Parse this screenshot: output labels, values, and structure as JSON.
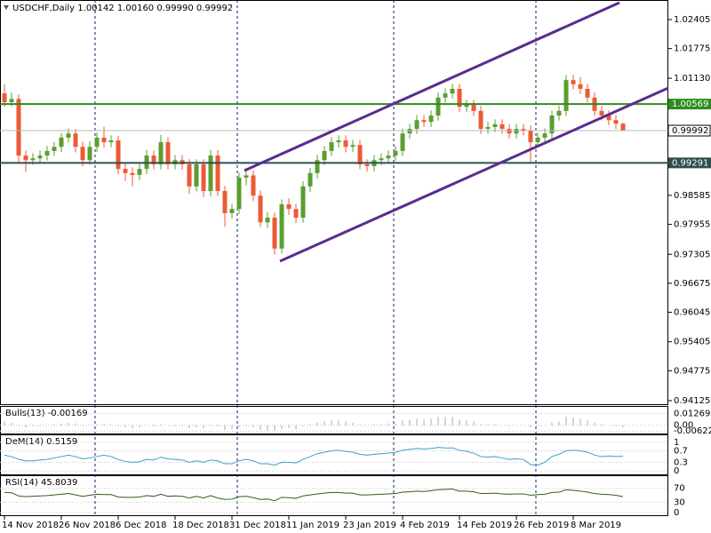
{
  "chart_data": {
    "type": "candlestick",
    "title": "USDCHF,Daily  1.00142 1.00160 0.99990 0.99992",
    "categories": [
      "14 Nov 2018",
      null,
      null,
      null,
      null,
      null,
      null,
      null,
      "26 Nov 2018",
      null,
      null,
      null,
      null,
      null,
      null,
      null,
      "6 Dec 2018",
      null,
      null,
      null,
      null,
      null,
      null,
      null,
      "18 Dec 2018",
      null,
      null,
      null,
      null,
      null,
      null,
      null,
      "31 Dec 2018",
      null,
      null,
      null,
      null,
      null,
      null,
      null,
      "11 Jan 2019",
      null,
      null,
      null,
      null,
      null,
      null,
      null,
      "23 Jan 2019",
      null,
      null,
      null,
      null,
      null,
      null,
      null,
      "4 Feb 2019",
      null,
      null,
      null,
      null,
      null,
      null,
      null,
      "14 Feb 2019",
      null,
      null,
      null,
      null,
      null,
      null,
      null,
      "26 Feb 2019",
      null,
      null,
      null,
      null,
      null,
      null,
      null,
      "8 Mar 2019",
      null,
      null,
      null,
      null,
      null,
      null,
      null
    ],
    "open": [
      1.008,
      1.0061,
      1.0068,
      0.9945,
      0.9935,
      0.9939,
      0.9945,
      0.9955,
      0.9964,
      0.9984,
      0.9993,
      0.9964,
      0.9935,
      0.9964,
      0.9984,
      0.9974,
      0.9978,
      0.9916,
      0.9907,
      0.9903,
      0.9916,
      0.9945,
      0.9926,
      0.9974,
      0.9926,
      0.9935,
      0.9926,
      0.9878,
      0.9926,
      0.9868,
      0.9945,
      0.9868,
      0.982,
      0.9829,
      0.9897,
      0.9902,
      0.9858,
      0.98,
      0.981,
      0.9743,
      0.9839,
      0.9829,
      0.981,
      0.9878,
      0.9907,
      0.9935,
      0.9955,
      0.9974,
      0.9978,
      0.9964,
      0.9968,
      0.9926,
      0.9922,
      0.9935,
      0.9939,
      0.9945,
      0.9955,
      0.9993,
      1.0003,
      1.0022,
      1.0018,
      1.0032,
      1.0071,
      1.008,
      1.009,
      1.0051,
      1.0055,
      1.0042,
      1.0003,
      1.0007,
      1.0013,
      1.0003,
      0.9993,
      1.0003,
      1.0,
      0.9974,
      0.9984,
      0.9993,
      1.0032,
      1.0042,
      1.0109,
      1.01,
      1.009,
      1.0071,
      1.0042,
      1.0032,
      1.0022,
      1.00142
    ],
    "high": [
      1.01,
      1.0082,
      1.0078,
      0.9956,
      0.995,
      0.9956,
      0.9966,
      0.9975,
      0.9994,
      1.0004,
      1.0003,
      0.9975,
      0.9976,
      0.9995,
      1.0008,
      0.9989,
      0.9988,
      0.9927,
      0.992,
      0.9927,
      0.9957,
      0.9956,
      0.999,
      0.9985,
      0.9946,
      0.9946,
      0.9937,
      0.9937,
      0.9937,
      0.9957,
      0.9957,
      0.9879,
      0.984,
      0.9908,
      0.9914,
      0.9913,
      0.9869,
      0.9822,
      0.9821,
      0.985,
      0.9852,
      0.984,
      0.9889,
      0.9918,
      0.9946,
      0.9966,
      0.9985,
      0.9989,
      0.9989,
      0.9979,
      0.9979,
      0.9937,
      0.9946,
      0.995,
      0.9956,
      0.9966,
      1.0004,
      1.0014,
      1.0033,
      1.0033,
      1.0043,
      1.0082,
      1.0091,
      1.0101,
      1.0101,
      1.0066,
      1.0066,
      1.0053,
      1.0018,
      1.0024,
      1.0024,
      1.0014,
      1.0014,
      1.0014,
      1.0011,
      0.9995,
      1.0004,
      1.0043,
      1.0053,
      1.012,
      1.012,
      1.0115,
      1.0101,
      1.0082,
      1.0053,
      1.0043,
      1.0033,
      1.0016
    ],
    "low": [
      1.0051,
      1.0052,
      0.993,
      0.991,
      0.9925,
      0.9928,
      0.9934,
      0.9944,
      0.9953,
      0.9973,
      0.9952,
      0.9922,
      0.9925,
      0.9953,
      0.9962,
      0.9963,
      0.9905,
      0.989,
      0.9878,
      0.9892,
      0.9905,
      0.9915,
      0.9915,
      0.9915,
      0.9915,
      0.9914,
      0.9862,
      0.9867,
      0.9855,
      0.9856,
      0.9857,
      0.979,
      0.9808,
      0.9818,
      0.988,
      0.9846,
      0.979,
      0.9788,
      0.973,
      0.9732,
      0.9816,
      0.9798,
      0.9799,
      0.9866,
      0.9895,
      0.9924,
      0.9944,
      0.9962,
      0.9952,
      0.9953,
      0.9915,
      0.991,
      0.9911,
      0.9924,
      0.9928,
      0.9934,
      0.9944,
      0.9982,
      0.9992,
      1.0007,
      1.0007,
      1.0021,
      1.006,
      1.0069,
      1.004,
      1.004,
      1.0031,
      0.9992,
      0.9992,
      0.9996,
      0.9992,
      0.9982,
      0.9982,
      0.9989,
      0.993,
      0.9963,
      0.9973,
      0.9982,
      1.0021,
      1.0031,
      1.0089,
      1.0079,
      1.006,
      1.0031,
      1.0021,
      1.0011,
      1.0003,
      0.9999
    ],
    "close": [
      1.0061,
      1.0068,
      0.9945,
      0.9935,
      0.9939,
      0.9945,
      0.9955,
      0.9964,
      0.9984,
      0.9993,
      0.9964,
      0.9935,
      0.9964,
      0.9984,
      0.9974,
      0.9978,
      0.9916,
      0.9907,
      0.9903,
      0.9916,
      0.9945,
      0.9926,
      0.9974,
      0.9926,
      0.9935,
      0.9926,
      0.9878,
      0.9926,
      0.9868,
      0.9945,
      0.9868,
      0.982,
      0.9829,
      0.9897,
      0.9902,
      0.9858,
      0.98,
      0.981,
      0.9743,
      0.9839,
      0.9829,
      0.981,
      0.9878,
      0.9907,
      0.9935,
      0.9955,
      0.9974,
      0.9978,
      0.9964,
      0.9968,
      0.9926,
      0.9922,
      0.9935,
      0.9939,
      0.9945,
      0.9955,
      0.9993,
      1.0003,
      1.0022,
      1.0018,
      1.0032,
      1.0071,
      1.008,
      1.009,
      1.0051,
      1.0055,
      1.0042,
      1.0003,
      1.0007,
      1.0013,
      1.0003,
      0.9993,
      1.0003,
      1.0,
      0.9974,
      0.9984,
      0.9993,
      1.0032,
      1.0042,
      1.0109,
      1.01,
      1.009,
      1.0071,
      1.0042,
      1.0032,
      1.0022,
      1.00142,
      0.99992
    ],
    "up_color": "#5a9e2f",
    "down_color": "#ec5a36",
    "ylim": [
      0.94048,
      1.0283
    ],
    "yticks": [
      1.02405,
      1.01775,
      {
        "value": 1.0113,
        "label": "1.01130"
      },
      0.98585,
      0.97955,
      0.97305,
      0.96675,
      0.96045,
      0.95405,
      0.94775,
      0.94125
    ],
    "levels": [
      {
        "value": 1.00569,
        "color": "#2e8b1e"
      },
      {
        "value": 0.99291,
        "color": "#2f4f4f"
      }
    ],
    "indicators": [
      {
        "type": "histogram",
        "label": "Bulls(13) -0.00169",
        "color": "#a8a8a8",
        "ylim": [
          -0.0089,
          0.0199
        ],
        "yticks": [
          0.01269,
          {
            "value": 0,
            "label": "0.00"
          },
          -0.00622
        ],
        "values": [
          0.004,
          0.003,
          -0.001,
          -0.002,
          -0.001,
          -0.001,
          0.0,
          0.001,
          0.002,
          0.003,
          0.002,
          -0.001,
          0.0,
          0.001,
          0.002,
          0.001,
          -0.001,
          -0.002,
          -0.003,
          -0.002,
          0.0,
          -0.001,
          0.001,
          0.0,
          -0.001,
          -0.001,
          -0.003,
          -0.002,
          -0.003,
          -0.001,
          -0.001,
          -0.005,
          -0.004,
          -0.002,
          -0.001,
          -0.002,
          -0.005,
          -0.006,
          -0.006,
          -0.004,
          -0.003,
          -0.004,
          -0.001,
          0.001,
          0.003,
          0.004,
          0.005,
          0.005,
          0.004,
          0.003,
          0.001,
          0.0,
          0.001,
          0.001,
          0.002,
          0.002,
          0.005,
          0.006,
          0.007,
          0.006,
          0.007,
          0.009,
          0.009,
          0.009,
          0.006,
          0.005,
          0.004,
          0.001,
          0.001,
          0.001,
          0.0,
          -0.001,
          0.0,
          0.0,
          -0.002,
          -0.001,
          0.0,
          0.003,
          0.004,
          0.009,
          0.008,
          0.007,
          0.005,
          0.003,
          0.001,
          0.0,
          -0.001,
          -0.00169
        ]
      },
      {
        "type": "line",
        "label": "DeM(14) 0.5159",
        "color": "#3aa0c8",
        "ylim": [
          -0.12,
          1.24
        ],
        "yticks": [
          1,
          0.7,
          0.3,
          0
        ],
        "values": [
          0.55,
          0.5,
          0.4,
          0.35,
          0.35,
          0.38,
          0.4,
          0.45,
          0.5,
          0.55,
          0.5,
          0.42,
          0.45,
          0.5,
          0.55,
          0.5,
          0.4,
          0.33,
          0.3,
          0.32,
          0.4,
          0.38,
          0.48,
          0.42,
          0.4,
          0.38,
          0.3,
          0.35,
          0.3,
          0.38,
          0.35,
          0.25,
          0.25,
          0.35,
          0.4,
          0.35,
          0.25,
          0.25,
          0.2,
          0.3,
          0.3,
          0.28,
          0.4,
          0.5,
          0.6,
          0.65,
          0.7,
          0.72,
          0.68,
          0.65,
          0.58,
          0.55,
          0.58,
          0.6,
          0.62,
          0.65,
          0.72,
          0.75,
          0.78,
          0.76,
          0.78,
          0.82,
          0.8,
          0.8,
          0.72,
          0.68,
          0.62,
          0.5,
          0.48,
          0.5,
          0.45,
          0.4,
          0.42,
          0.4,
          0.22,
          0.2,
          0.3,
          0.5,
          0.58,
          0.7,
          0.72,
          0.7,
          0.65,
          0.55,
          0.5,
          0.52,
          0.5,
          0.5159
        ]
      },
      {
        "type": "line",
        "label": "RSI(14) 45.8039",
        "color": "#2e5e1e",
        "ylim": [
          -7.5,
          105
        ],
        "yticks": [
          70,
          30,
          0
        ],
        "values": [
          58,
          57,
          48,
          46,
          47,
          48,
          49,
          51,
          53,
          55,
          51,
          47,
          50,
          53,
          52,
          52,
          45,
          44,
          44,
          45,
          49,
          47,
          53,
          47,
          48,
          47,
          42,
          47,
          42,
          49,
          42,
          38,
          39,
          46,
          47,
          43,
          38,
          39,
          34,
          44,
          43,
          41,
          48,
          51,
          54,
          56,
          58,
          58,
          56,
          56,
          51,
          51,
          52,
          53,
          54,
          55,
          59,
          60,
          62,
          61,
          63,
          66,
          67,
          68,
          62,
          62,
          60,
          55,
          55,
          56,
          54,
          53,
          54,
          54,
          50,
          52,
          53,
          58,
          59,
          66,
          64,
          62,
          59,
          55,
          53,
          52,
          50,
          45.8039
        ]
      }
    ]
  }
}
